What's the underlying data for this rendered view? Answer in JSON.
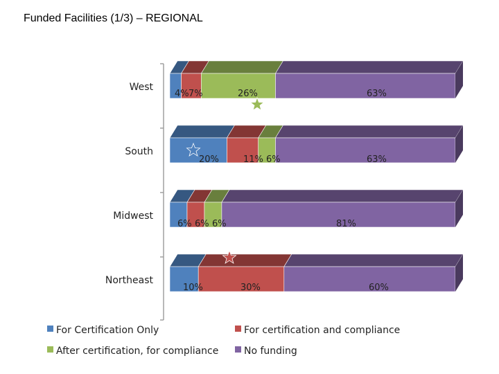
{
  "title": "Funded Facilities (1/3) –  REGIONAL",
  "chart_data": {
    "type": "bar",
    "orientation": "horizontal",
    "stacked": true,
    "percent_stacked": true,
    "style": "3d",
    "categories": [
      "West",
      "South",
      "Midwest",
      "Northeast"
    ],
    "series": [
      {
        "name": "For Certification Only",
        "color": "#4f81bd",
        "values": [
          4,
          20,
          6,
          10
        ],
        "labels": [
          "4%",
          "20%",
          "6%",
          "10%"
        ]
      },
      {
        "name": "For certification and compliance",
        "color": "#c0504d",
        "values": [
          7,
          11,
          6,
          30
        ],
        "labels": [
          "7%",
          "11%",
          "6%",
          "30%"
        ]
      },
      {
        "name": "After certification, for compliance",
        "color": "#9bbb59",
        "values": [
          26,
          6,
          6,
          0
        ],
        "labels": [
          "26%",
          "6%",
          "6%",
          ""
        ]
      },
      {
        "name": "No funding",
        "color": "#8064a2",
        "values": [
          63,
          63,
          81,
          60
        ],
        "labels": [
          "63%",
          "63%",
          "81%",
          "60%"
        ]
      }
    ],
    "markers": [
      {
        "category": "West",
        "series": "After certification, for compliance",
        "shape": "star",
        "color": "#9bbb59"
      },
      {
        "category": "South",
        "series": "For Certification Only",
        "shape": "star",
        "color": "#4f81bd"
      },
      {
        "category": "Northeast",
        "series": "For certification and compliance",
        "shape": "star",
        "color": "#c0504d"
      }
    ],
    "legend_position": "bottom",
    "grid": false
  }
}
